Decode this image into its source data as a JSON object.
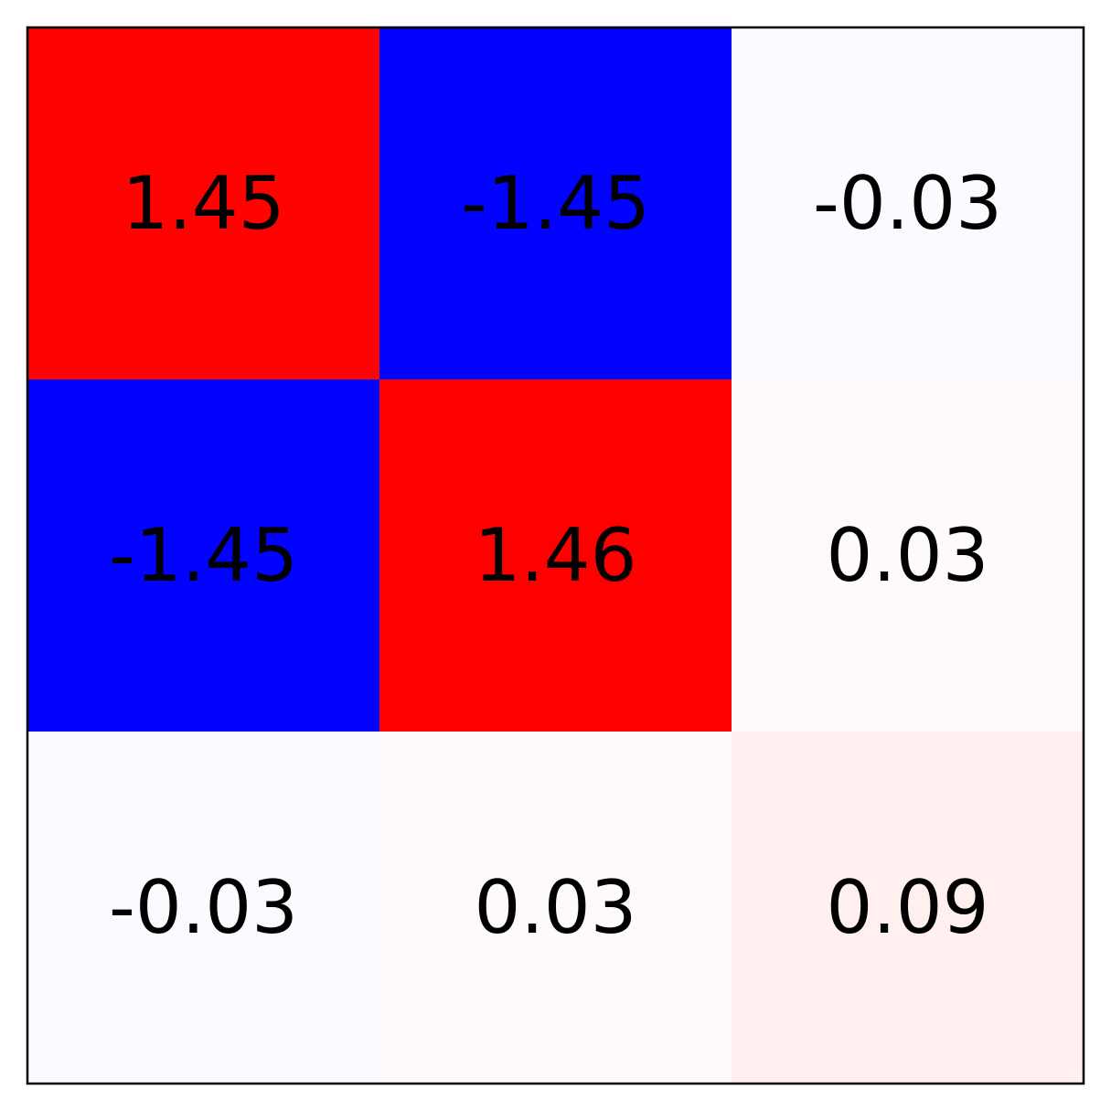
{
  "chart_data": {
    "type": "heatmap",
    "colormap": "bwr",
    "vmin": -1.46,
    "vmax": 1.46,
    "grid": false,
    "rows": 3,
    "cols": 3,
    "values": [
      [
        1.45,
        -1.45,
        -0.03
      ],
      [
        -1.45,
        1.46,
        0.03
      ],
      [
        -0.03,
        0.03,
        0.09
      ]
    ],
    "labels": [
      [
        "1.45",
        "-1.45",
        "-0.03"
      ],
      [
        "-1.45",
        "1.46",
        "0.03"
      ],
      [
        "-0.03",
        "0.03",
        "0.09"
      ]
    ]
  }
}
